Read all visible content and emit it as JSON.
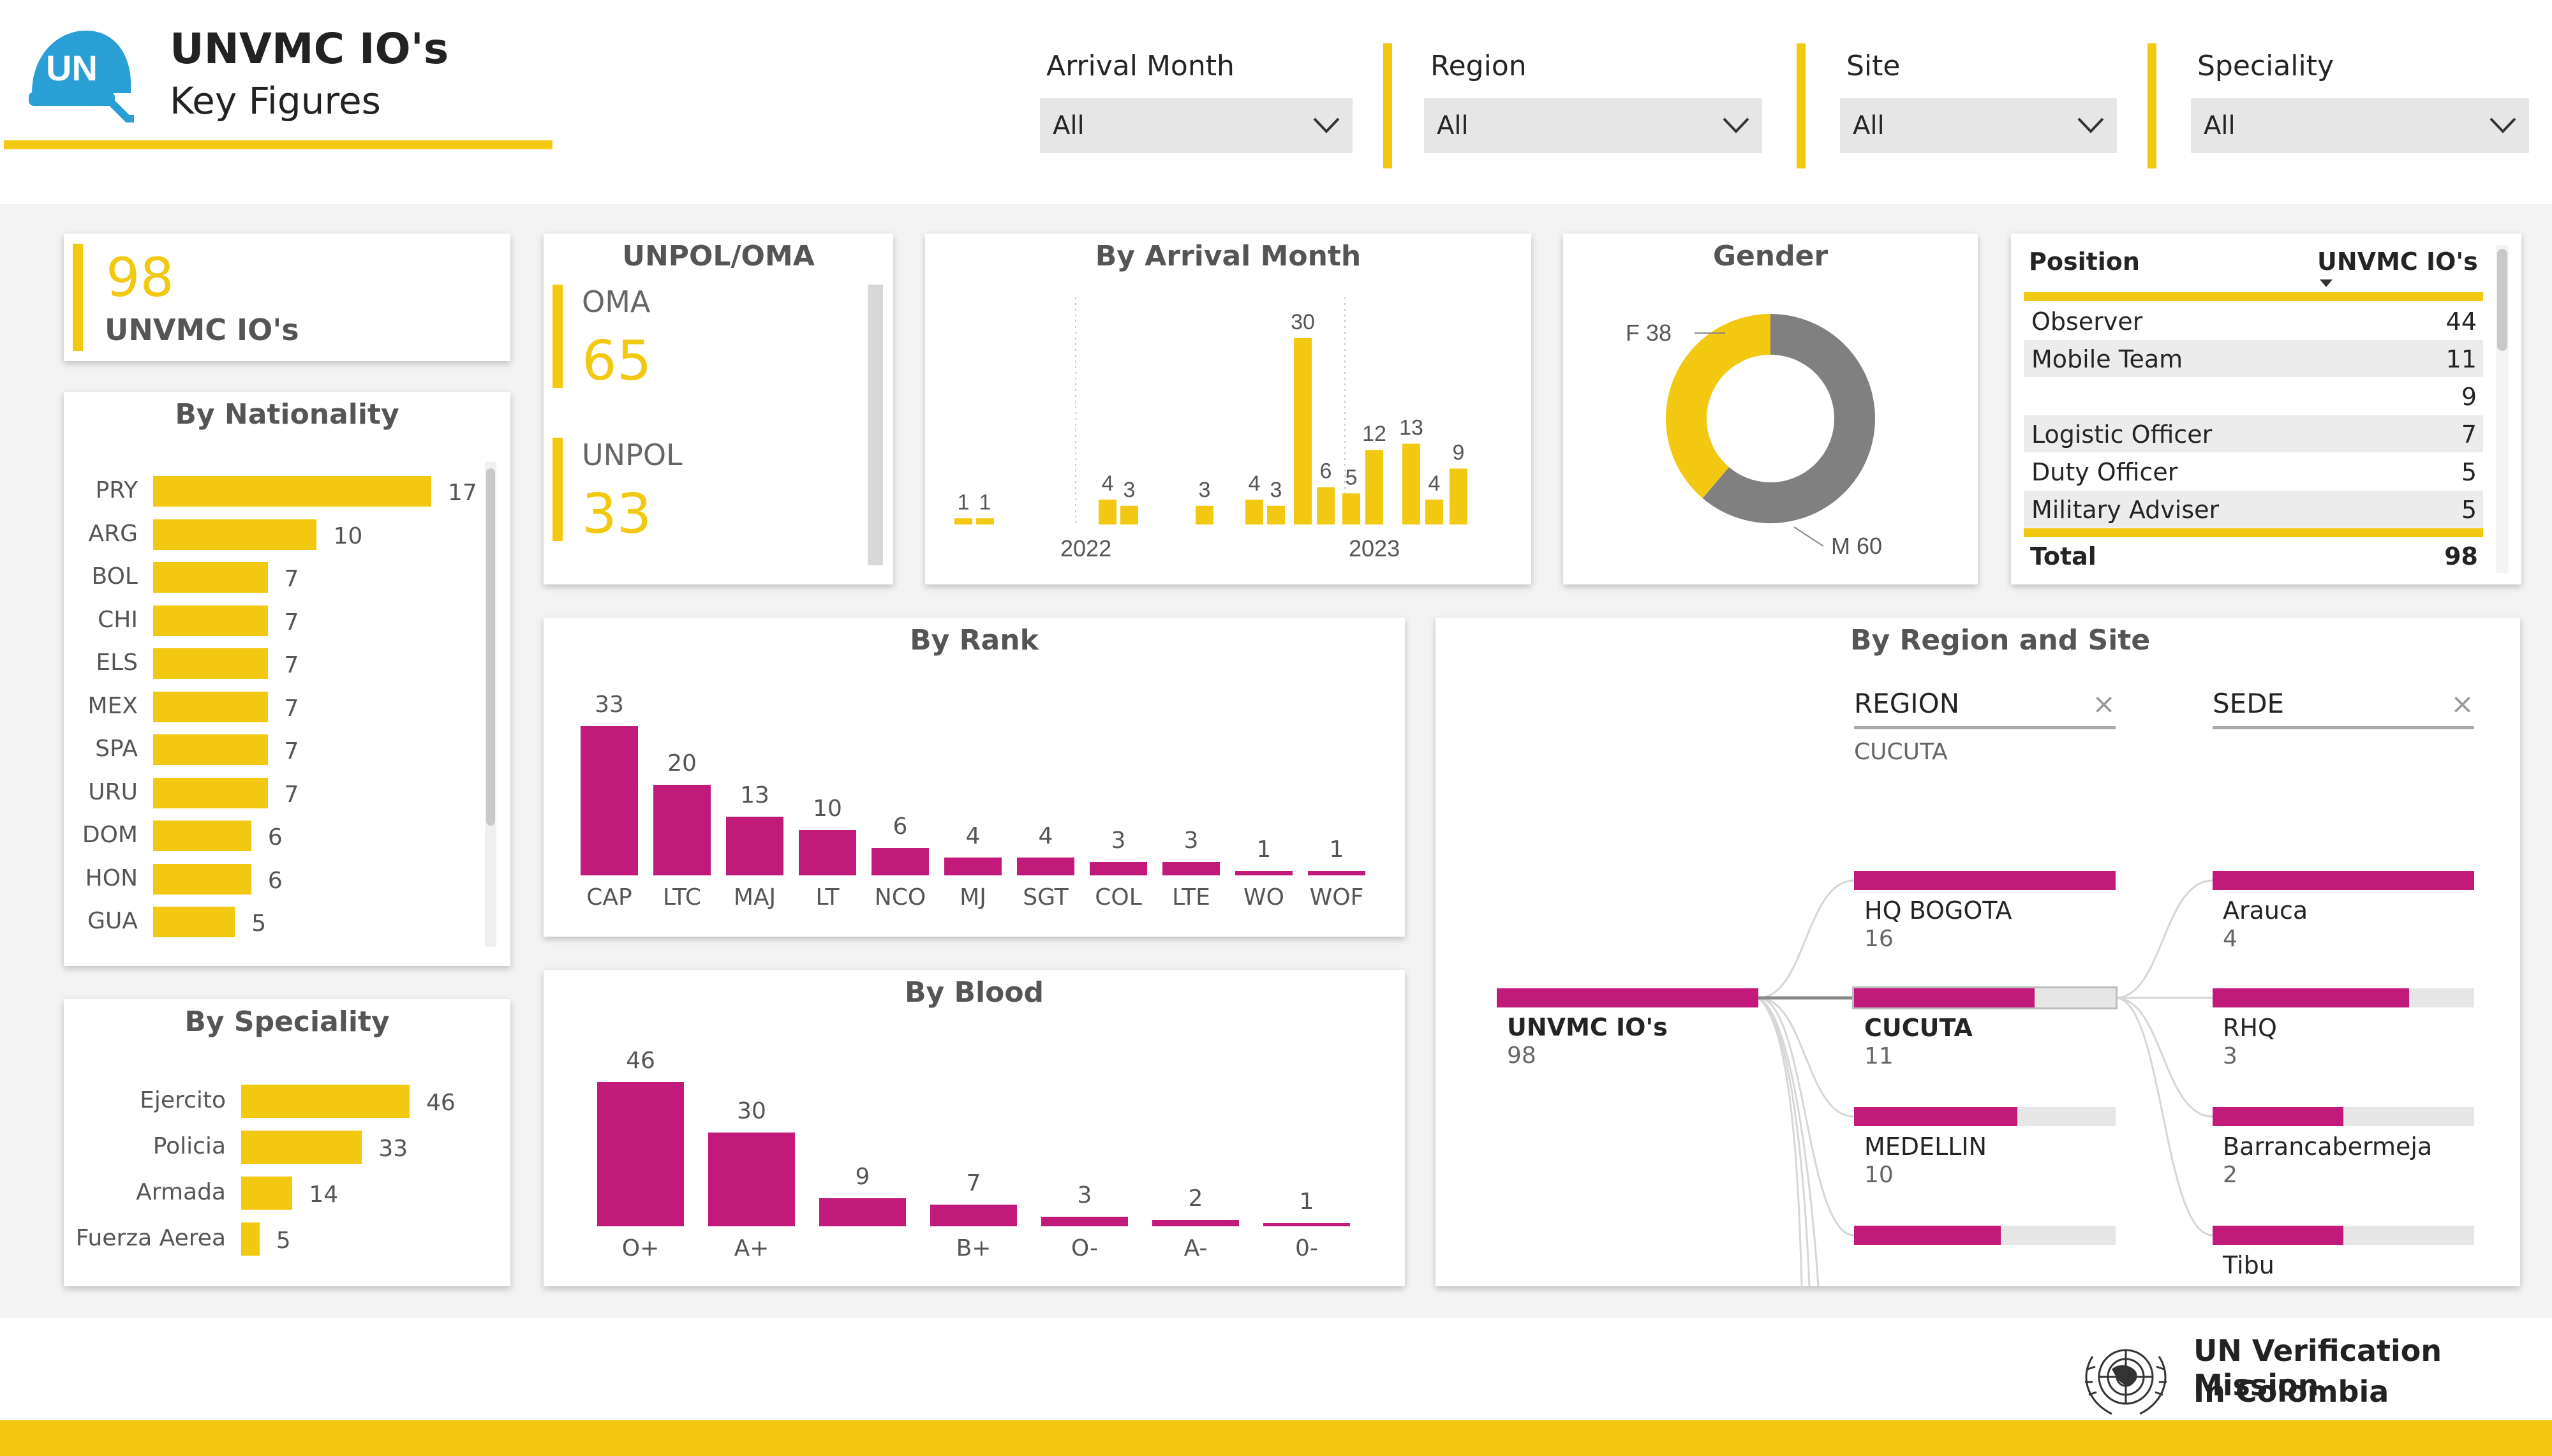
{
  "header": {
    "title": "UNVMC IO's",
    "subtitle": "Key Figures",
    "logo_text": "UN"
  },
  "filters": [
    {
      "label": "Arrival Month",
      "value": "All"
    },
    {
      "label": "Region",
      "value": "All"
    },
    {
      "label": "Site",
      "value": "All"
    },
    {
      "label": "Speciality",
      "value": "All"
    }
  ],
  "kpi": {
    "value": "98",
    "label": "UNVMC IO's"
  },
  "unpol_oma": {
    "title": "UNPOL/OMA",
    "items": [
      {
        "label": "OMA",
        "value": "65"
      },
      {
        "label": "UNPOL",
        "value": "33"
      }
    ]
  },
  "nationality": {
    "title": "By Nationality",
    "chart_data": {
      "type": "bar",
      "orientation": "horizontal",
      "categories": [
        "PRY",
        "ARG",
        "BOL",
        "CHI",
        "ELS",
        "MEX",
        "SPA",
        "URU",
        "DOM",
        "HON",
        "GUA"
      ],
      "values": [
        17,
        10,
        7,
        7,
        7,
        7,
        7,
        7,
        6,
        6,
        5
      ]
    }
  },
  "speciality": {
    "title": "By Speciality",
    "chart_data": {
      "type": "bar",
      "orientation": "horizontal",
      "categories": [
        "Ejercito",
        "Policia",
        "Armada",
        "Fuerza Aerea"
      ],
      "values": [
        46,
        33,
        14,
        5
      ]
    }
  },
  "arrival": {
    "title": "By Arrival Month",
    "chart_data": {
      "type": "bar",
      "values": [
        1,
        1,
        4,
        3,
        3,
        4,
        3,
        30,
        6,
        5,
        12,
        13,
        4,
        9
      ],
      "year_labels": [
        "2022",
        "2023"
      ]
    }
  },
  "gender": {
    "title": "Gender",
    "chart_data": {
      "type": "pie",
      "style": "donut",
      "categories": [
        "F",
        "M"
      ],
      "values": [
        38,
        60
      ],
      "labels": [
        "F 38",
        "M 60"
      ]
    }
  },
  "position_table": {
    "col1": "Position",
    "col2": "UNVMC IO's",
    "rows": [
      {
        "name": "Observer",
        "value": "44"
      },
      {
        "name": "Mobile Team",
        "value": "11"
      },
      {
        "name": "",
        "value": "9"
      },
      {
        "name": "Logistic Officer",
        "value": "7"
      },
      {
        "name": "Duty Officer",
        "value": "5"
      },
      {
        "name": "Military Adviser",
        "value": "5"
      }
    ],
    "total_label": "Total",
    "total_value": "98"
  },
  "rank": {
    "title": "By Rank",
    "chart_data": {
      "type": "bar",
      "categories": [
        "CAP",
        "LTC",
        "MAJ",
        "LT",
        "NCO",
        "MJ",
        "SGT",
        "COL",
        "LTE",
        "WO",
        "WOF"
      ],
      "values": [
        33,
        20,
        13,
        10,
        6,
        4,
        4,
        3,
        3,
        1,
        1
      ]
    }
  },
  "blood": {
    "title": "By Blood",
    "chart_data": {
      "type": "bar",
      "categories": [
        "O+",
        "A+",
        "",
        "B+",
        "O-",
        "A-",
        "0-"
      ],
      "values": [
        46,
        30,
        9,
        7,
        3,
        2,
        1
      ]
    }
  },
  "tree": {
    "title": "By Region and Site",
    "region_header": "REGION",
    "region_filter": "CUCUTA",
    "site_header": "SEDE",
    "close_icon": "×",
    "root": {
      "label": "UNVMC IO's",
      "value": "98"
    },
    "regions": [
      {
        "label": "HQ BOGOTA",
        "value": "16",
        "frac": 1.0
      },
      {
        "label": "CUCUTA",
        "value": "11",
        "frac": 0.69
      },
      {
        "label": "MEDELLIN",
        "value": "10",
        "frac": 0.625
      },
      {
        "label": "",
        "value": "",
        "frac": 0.56
      }
    ],
    "sites": [
      {
        "label": "Arauca",
        "value": "4",
        "frac": 1.0
      },
      {
        "label": "RHQ",
        "value": "3",
        "frac": 0.75
      },
      {
        "label": "Barrancabermeja",
        "value": "2",
        "frac": 0.5
      },
      {
        "label": "Tibu",
        "value": "",
        "frac": 0.5
      }
    ]
  },
  "footer": {
    "line1": "UN Verification Mission",
    "line2": "In Colombia"
  }
}
